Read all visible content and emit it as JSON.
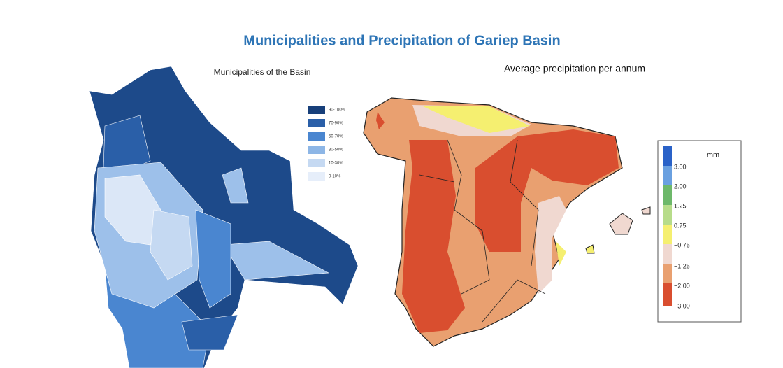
{
  "header": {
    "title": "Municipalities and Precipitation of Gariep Basin"
  },
  "left_map": {
    "title": "Municipalities of the Basin",
    "legend": [
      "90-100%",
      "70-90%",
      "50-70%",
      "30-50%",
      "10-30%",
      "0-10%"
    ]
  },
  "right_map": {
    "title": "Average precipitation per annum",
    "legend": {
      "unit": "mm",
      "ticks": [
        "3.00",
        "2.00",
        "1.25",
        "0.75",
        "−0.75",
        "−1.25",
        "−2.00",
        "−3.00"
      ]
    }
  }
}
